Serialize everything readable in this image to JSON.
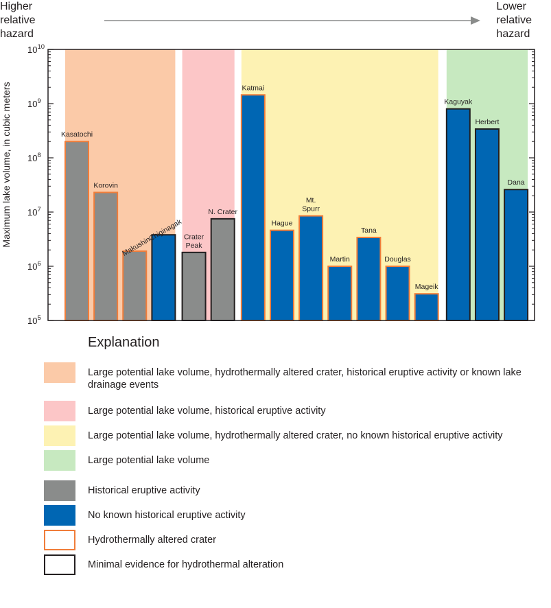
{
  "hazard": {
    "left_line1": "Higher",
    "left_line2": "relative",
    "left_line3": "hazard",
    "right_line1": "Lower",
    "right_line2": "relative",
    "right_line3": "hazard"
  },
  "chart_data": {
    "type": "bar",
    "ylabel": "Maximum lake volume, in cubic meters",
    "yscale": "log",
    "ylim": [
      100000,
      10000000000
    ],
    "yticks": [
      {
        "base": "10",
        "exp": "5"
      },
      {
        "base": "10",
        "exp": "6"
      },
      {
        "base": "10",
        "exp": "7"
      },
      {
        "base": "10",
        "exp": "8"
      },
      {
        "base": "10",
        "exp": "9"
      },
      {
        "base": "10",
        "exp": "10"
      }
    ],
    "categories": [
      "Kasatochi",
      "Korovin",
      "Makushin",
      "Chiginagak",
      "Crater Peak",
      "N. Crater",
      "Katmai",
      "Hague",
      "Mt. Spurr",
      "Martin",
      "Tana",
      "Douglas",
      "Mageik",
      "Kaguyak",
      "Herbert",
      "Dana"
    ],
    "label_lines": [
      [
        "Kasatochi"
      ],
      [
        "Korovin"
      ],
      [
        "Makushin"
      ],
      [
        "Chiginagak"
      ],
      [
        "Crater",
        "Peak"
      ],
      [
        "N. Crater"
      ],
      [
        "Katmai"
      ],
      [
        "Hague"
      ],
      [
        "Mt.",
        "Spurr"
      ],
      [
        "Martin"
      ],
      [
        "Tana"
      ],
      [
        "Douglas"
      ],
      [
        "Mageik"
      ],
      [
        "Kaguyak"
      ],
      [
        "Herbert"
      ],
      [
        "Dana"
      ]
    ],
    "label_rotated": [
      false,
      false,
      true,
      true,
      false,
      false,
      false,
      false,
      false,
      false,
      false,
      false,
      false,
      false,
      false,
      false
    ],
    "values": [
      200000000,
      23000000,
      1900000,
      3800000,
      1800000,
      7500000,
      1450000000,
      4600000,
      8500000,
      1000000,
      3400000,
      1000000,
      310000,
      800000000,
      340000000,
      26000000
    ],
    "historical_eruptive": [
      true,
      true,
      true,
      false,
      true,
      true,
      false,
      false,
      false,
      false,
      false,
      false,
      false,
      false,
      false,
      false
    ],
    "hydrothermally_altered": [
      true,
      true,
      true,
      false,
      false,
      false,
      true,
      true,
      true,
      true,
      true,
      true,
      true,
      false,
      false,
      false
    ],
    "groups": [
      {
        "color": "#fbcaa8",
        "start": 0,
        "end": 3
      },
      {
        "color": "#fcc6c7",
        "start": 4,
        "end": 5
      },
      {
        "color": "#fdf2b3",
        "start": 6,
        "end": 12
      },
      {
        "color": "#c7e9c0",
        "start": 13,
        "end": 15
      }
    ]
  },
  "colors": {
    "gray": "#8a8c8b",
    "blue": "#0066b3",
    "orange": "#f07d3a",
    "black": "#231f20",
    "peach": "#fbcaa8",
    "pink": "#fcc6c7",
    "yellow": "#fdf2b3",
    "green": "#c7e9c0",
    "arrow": "#8a8c8b"
  },
  "legend": {
    "title": "Explanation",
    "items": [
      {
        "label": "Large potential lake volume, hydrothermally altered crater, historical eruptive activity or known lake drainage events",
        "fill": "#fbcaa8",
        "border": "none"
      },
      {
        "label": "Large potential lake volume, historical eruptive activity",
        "fill": "#fcc6c7",
        "border": "none"
      },
      {
        "label": "Large potential lake volume, hydrothermally altered crater, no known historical eruptive activity",
        "fill": "#fdf2b3",
        "border": "none"
      },
      {
        "label": "Large potential lake volume",
        "fill": "#c7e9c0",
        "border": "none"
      },
      {
        "label": "Historical eruptive activity",
        "fill": "#8a8c8b",
        "border": "none"
      },
      {
        "label": "No known historical eruptive activity",
        "fill": "#0066b3",
        "border": "none"
      },
      {
        "label": "Hydrothermally altered crater",
        "fill": "#ffffff",
        "border": "#f07d3a"
      },
      {
        "label": "Minimal evidence for hydrothermal alteration",
        "fill": "#ffffff",
        "border": "#231f20"
      }
    ]
  }
}
